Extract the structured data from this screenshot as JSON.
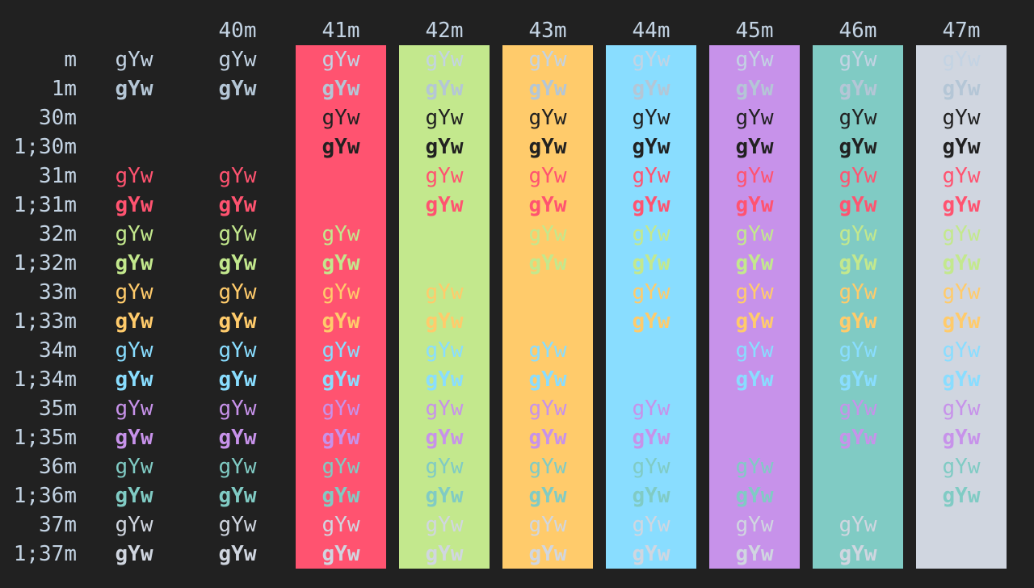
{
  "sample_text": "gYw",
  "palette": {
    "background": "#212121",
    "default_fg": "#c3d3e3",
    "default_fg_bold": "#b4c6d6",
    "black": "#212121",
    "red": "#ff5370",
    "green": "#c3e88d",
    "yellow": "#ffcb6b",
    "blue": "#89ddff",
    "magenta": "#c792ea",
    "cyan": "#80cbc4",
    "white": "#d0d6e0"
  },
  "columns": [
    {
      "label": "",
      "bg": null
    },
    {
      "label": "40m",
      "bg": "black"
    },
    {
      "label": "41m",
      "bg": "red"
    },
    {
      "label": "42m",
      "bg": "green"
    },
    {
      "label": "43m",
      "bg": "yellow"
    },
    {
      "label": "44m",
      "bg": "blue"
    },
    {
      "label": "45m",
      "bg": "magenta"
    },
    {
      "label": "46m",
      "bg": "cyan"
    },
    {
      "label": "47m",
      "bg": "white"
    }
  ],
  "rows": [
    {
      "label": "m",
      "fg": "default",
      "bold": false
    },
    {
      "label": "1m",
      "fg": "default",
      "bold": true
    },
    {
      "label": "30m",
      "fg": "black",
      "bold": false
    },
    {
      "label": "1;30m",
      "fg": "black",
      "bold": true
    },
    {
      "label": "31m",
      "fg": "red",
      "bold": false
    },
    {
      "label": "1;31m",
      "fg": "red",
      "bold": true
    },
    {
      "label": "32m",
      "fg": "green",
      "bold": false
    },
    {
      "label": "1;32m",
      "fg": "green",
      "bold": true
    },
    {
      "label": "33m",
      "fg": "yellow",
      "bold": false
    },
    {
      "label": "1;33m",
      "fg": "yellow",
      "bold": true
    },
    {
      "label": "34m",
      "fg": "blue",
      "bold": false
    },
    {
      "label": "1;34m",
      "fg": "blue",
      "bold": true
    },
    {
      "label": "35m",
      "fg": "magenta",
      "bold": false
    },
    {
      "label": "1;35m",
      "fg": "magenta",
      "bold": true
    },
    {
      "label": "36m",
      "fg": "cyan",
      "bold": false
    },
    {
      "label": "1;36m",
      "fg": "cyan",
      "bold": true
    },
    {
      "label": "37m",
      "fg": "white",
      "bold": false
    },
    {
      "label": "1;37m",
      "fg": "white",
      "bold": true
    }
  ]
}
